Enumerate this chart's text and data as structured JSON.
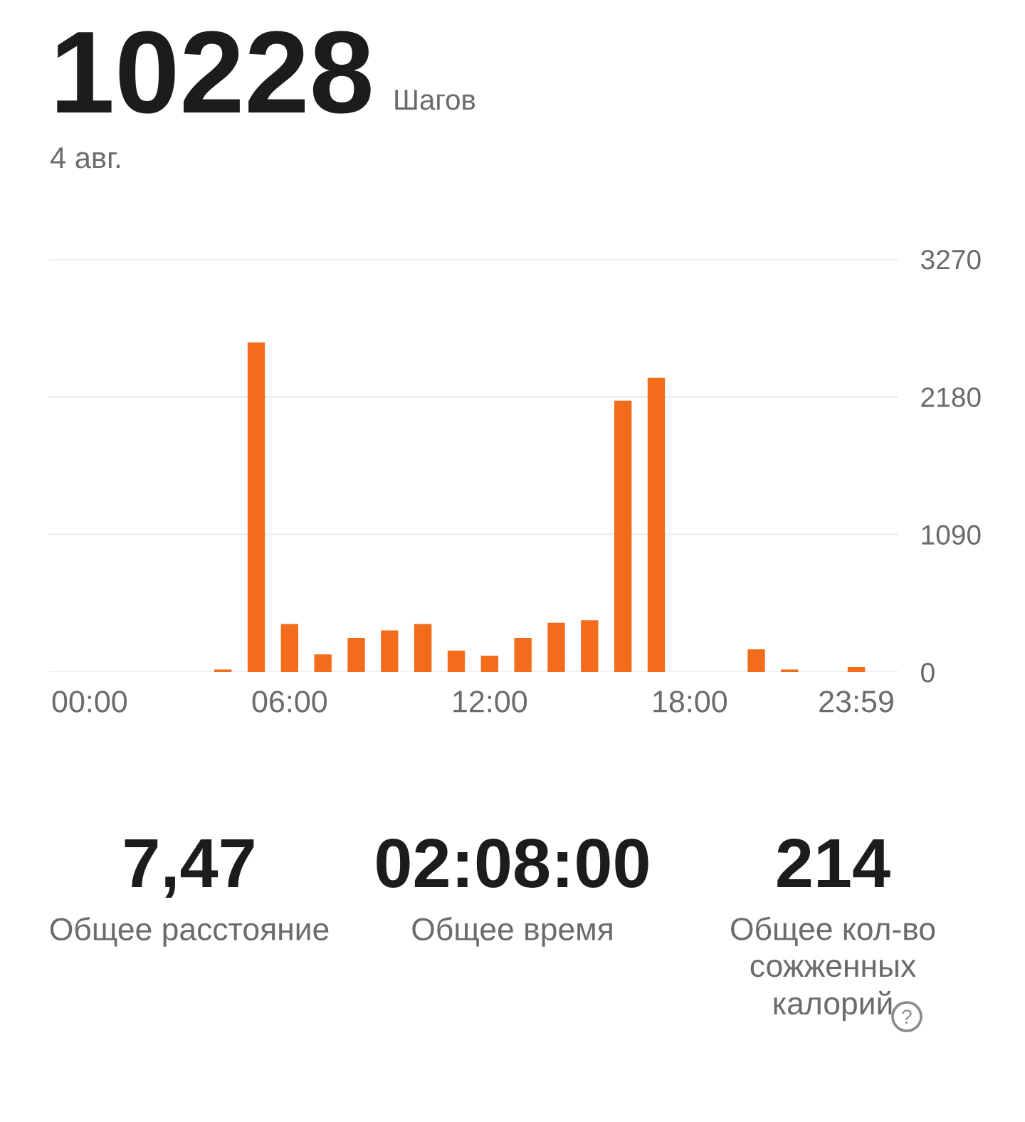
{
  "chart_data": {
    "type": "bar",
    "title": "10228",
    "subtitle": "4 авг.",
    "annotations": [
      "Шагов",
      "7,47",
      "Общее расстояние",
      "02:08:00",
      "Общее время",
      "214",
      "Общее кол-во\nсожженных\nкалорий"
    ],
    "categories": [
      "00:00",
      null,
      null,
      null,
      null,
      null,
      "06:00",
      null,
      null,
      null,
      null,
      null,
      "12:00",
      null,
      null,
      null,
      null,
      null,
      "18:00",
      null,
      null,
      null,
      null,
      "23:59"
    ],
    "values": [
      0,
      0,
      0,
      0,
      20,
      2610,
      380,
      140,
      270,
      330,
      380,
      170,
      130,
      270,
      390,
      410,
      2150,
      2330,
      0,
      0,
      180,
      20,
      0,
      40
    ],
    "color": "#f36c1c",
    "ylim": [
      0,
      3270
    ],
    "yticks": [
      0,
      1090,
      2180,
      3270
    ],
    "grid": "y"
  }
}
